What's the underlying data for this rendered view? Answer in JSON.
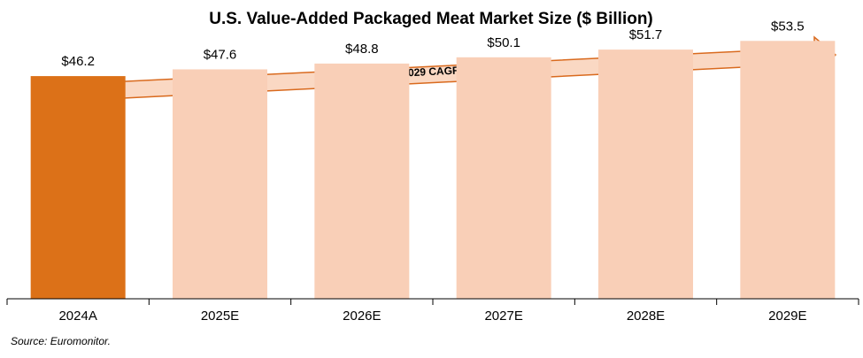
{
  "chart_data": {
    "type": "bar",
    "title": "U.S. Value-Added Packaged Meat Market Size ($ Billion)",
    "categories": [
      "2024A",
      "2025E",
      "2026E",
      "2027E",
      "2028E",
      "2029E"
    ],
    "values": [
      46.2,
      47.6,
      48.8,
      50.1,
      51.7,
      53.5
    ],
    "value_labels": [
      "$46.2",
      "$47.6",
      "$48.8",
      "$50.1",
      "$51.7",
      "$53.5"
    ],
    "xlabel": "",
    "ylabel": "",
    "ylim": [
      0,
      56
    ],
    "grid": false,
    "bar_colors": [
      "#dc7118",
      "#f9cfb7",
      "#f9cfb7",
      "#f9cfb7",
      "#f9cfb7",
      "#f9cfb7"
    ],
    "arrow_color": "#fad8c3",
    "arrow_stroke": "#d96a1e",
    "annotations": [
      {
        "text": "2024 – 2029 CAGR: +3.0%"
      }
    ]
  },
  "source": "Source: Euromonitor."
}
